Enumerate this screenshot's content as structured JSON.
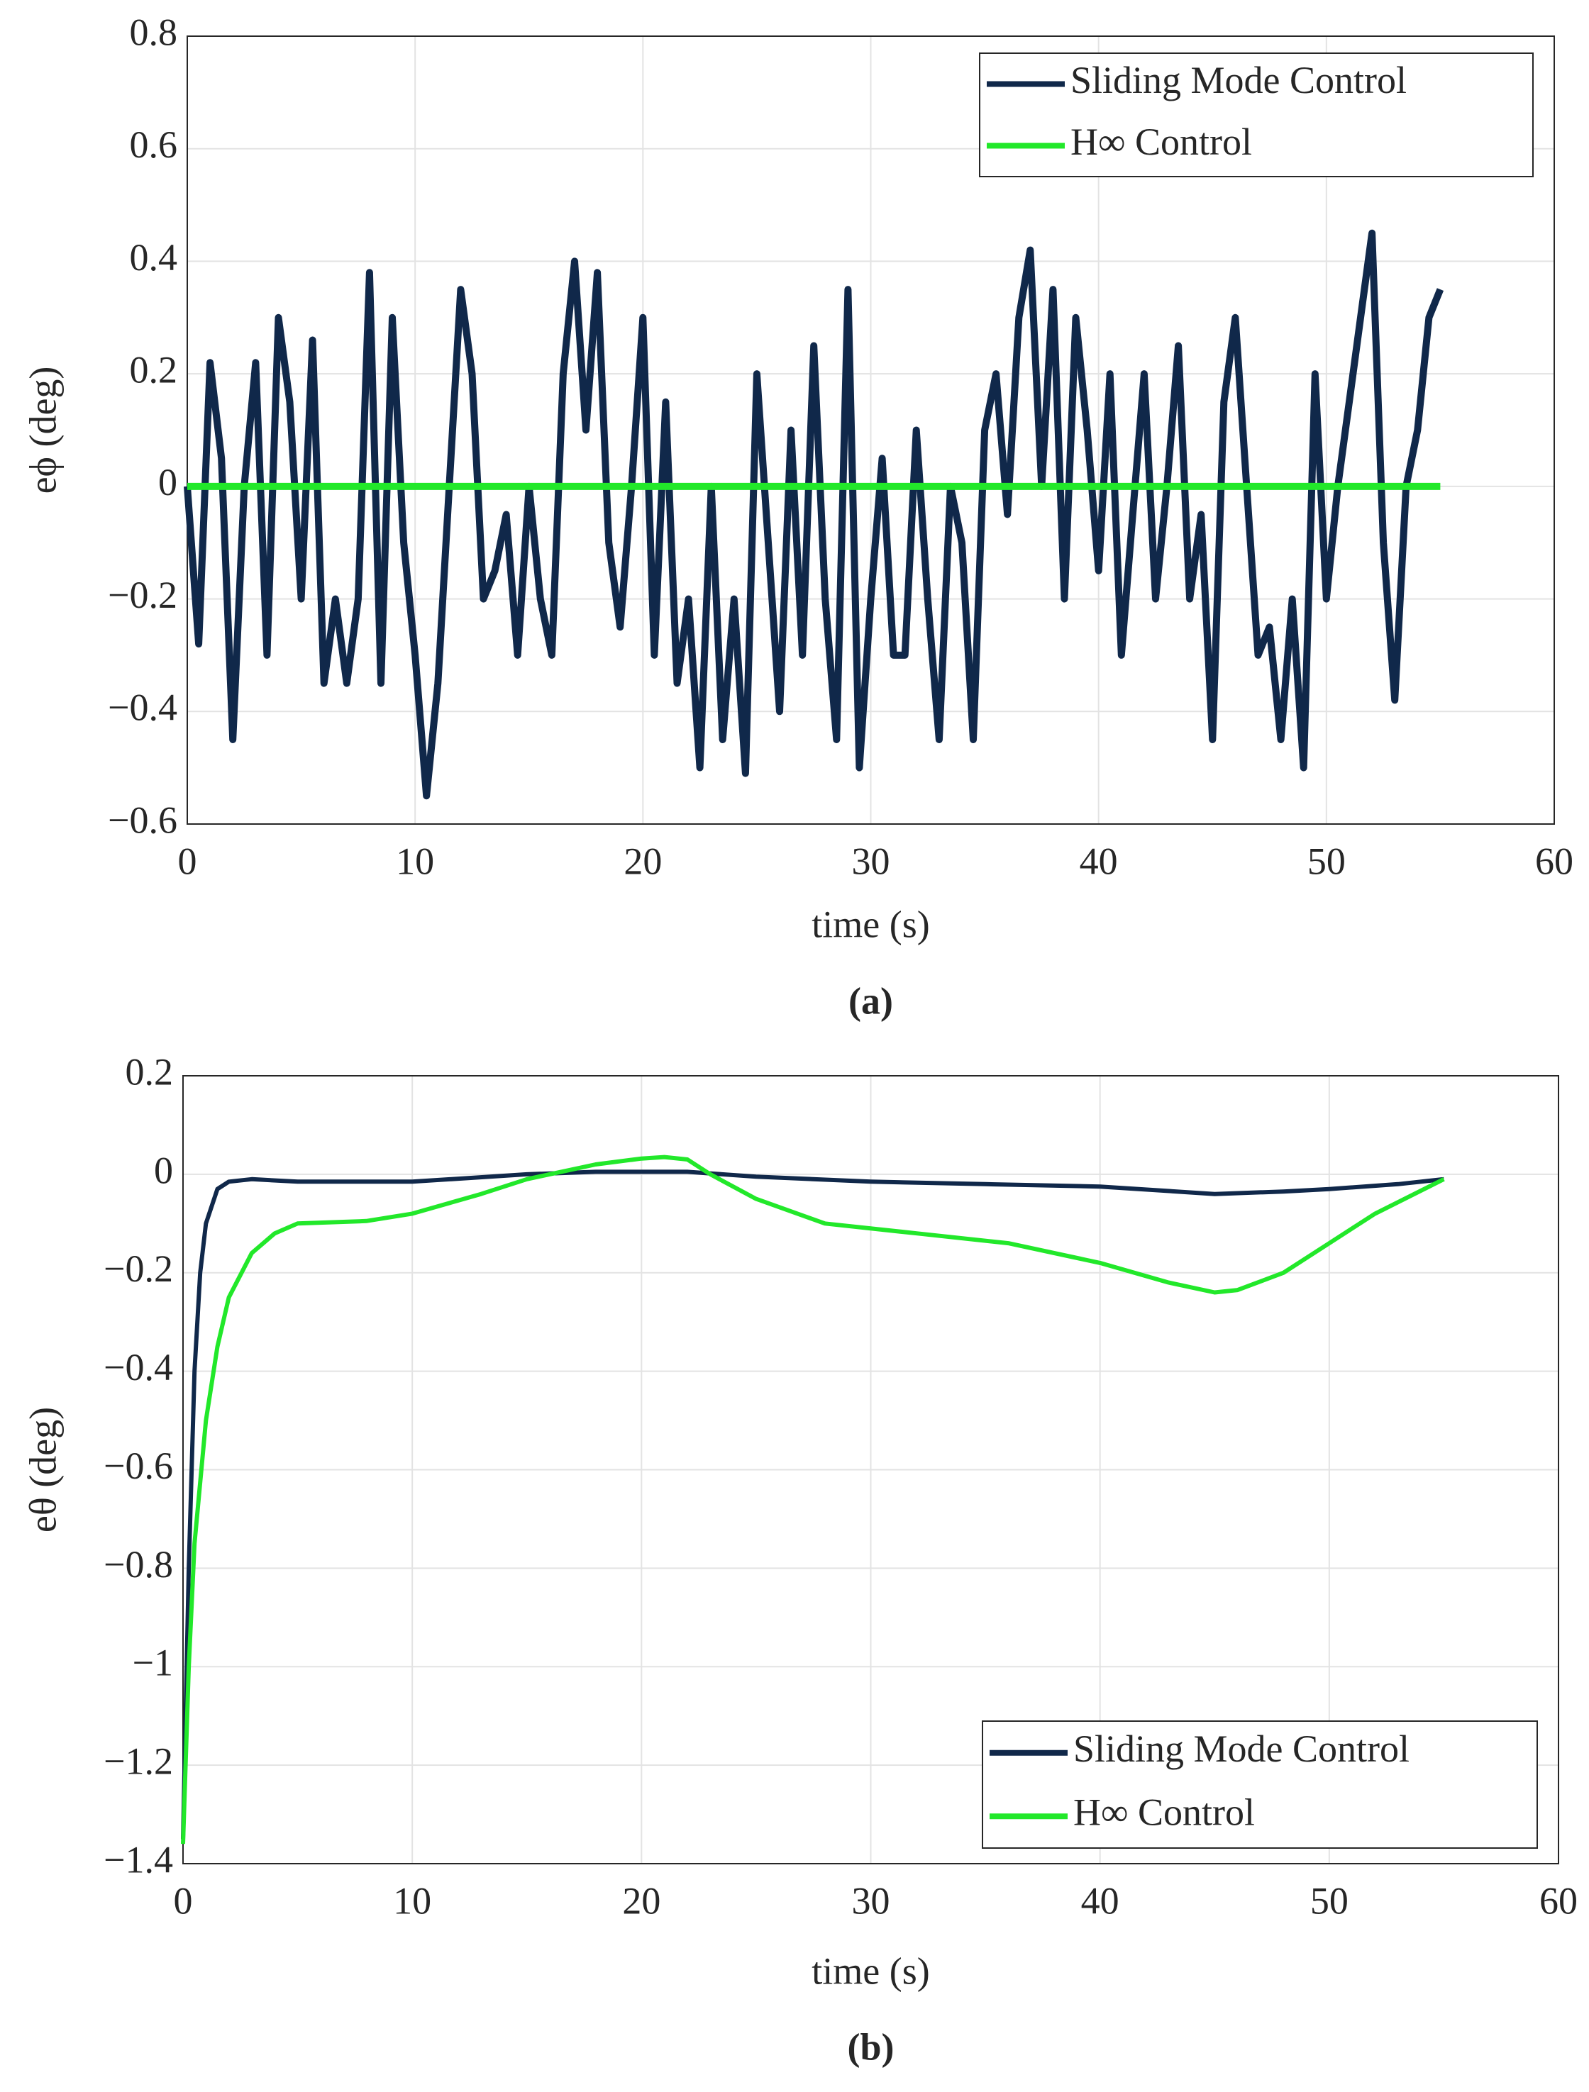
{
  "chart_data": [
    {
      "type": "line",
      "ylabel": "eϕ (deg)",
      "xlabel": "time (s)",
      "caption": "(a)",
      "xlim": [
        0,
        60
      ],
      "xticks": [
        0,
        10,
        20,
        30,
        40,
        50,
        60
      ],
      "ylim": [
        -0.6,
        0.8
      ],
      "yticks": [
        {
          "value": -0.6,
          "label": "−0.6"
        },
        {
          "value": -0.4,
          "label": "−0.4"
        },
        {
          "value": -0.2,
          "label": "−0.2"
        },
        0,
        0.2,
        0.4,
        0.6,
        0.8
      ],
      "grid": true,
      "legend": "upper right",
      "series": [
        {
          "name": "Sliding Mode Control",
          "color": "#10284a",
          "x": [
            0,
            0.5,
            1,
            1.5,
            2,
            2.5,
            3,
            3.5,
            4,
            4.5,
            5,
            5.5,
            6,
            6.5,
            7,
            7.5,
            8,
            8.5,
            9,
            9.5,
            10,
            10.5,
            11,
            11.5,
            12,
            12.5,
            13,
            13.5,
            14,
            14.5,
            15,
            15.5,
            16,
            16.5,
            17,
            17.5,
            18,
            18.5,
            19,
            19.5,
            20,
            20.5,
            21,
            21.5,
            22,
            22.5,
            23,
            23.5,
            24,
            24.5,
            25,
            25.5,
            26,
            26.5,
            27,
            27.5,
            28,
            28.5,
            29,
            29.5,
            30,
            30.5,
            31,
            31.5,
            32,
            32.5,
            33,
            33.5,
            34,
            34.5,
            35,
            35.5,
            36,
            36.5,
            37,
            37.5,
            38,
            38.5,
            39,
            39.5,
            40,
            40.5,
            41,
            41.5,
            42,
            42.5,
            43,
            43.5,
            44,
            44.5,
            45,
            45.5,
            46,
            46.5,
            47,
            47.5,
            48,
            48.5,
            49,
            49.5,
            50,
            50.5,
            51,
            51.5,
            52,
            52.5,
            53,
            53.5,
            54,
            54.5,
            55
          ],
          "values": [
            0,
            -0.28,
            0.22,
            0.05,
            -0.45,
            0.0,
            0.22,
            -0.3,
            0.3,
            0.15,
            -0.2,
            0.26,
            -0.35,
            -0.2,
            -0.35,
            -0.2,
            0.38,
            -0.35,
            0.3,
            -0.1,
            -0.3,
            -0.55,
            -0.35,
            0.0,
            0.35,
            0.2,
            -0.2,
            -0.15,
            -0.05,
            -0.3,
            0.0,
            -0.2,
            -0.3,
            0.2,
            0.4,
            0.1,
            0.38,
            -0.1,
            -0.25,
            0.0,
            0.3,
            -0.3,
            0.15,
            -0.35,
            -0.2,
            -0.5,
            0.0,
            -0.45,
            -0.2,
            -0.51,
            0.2,
            -0.1,
            -0.4,
            0.1,
            -0.3,
            0.25,
            -0.2,
            -0.45,
            0.35,
            -0.5,
            -0.2,
            0.05,
            -0.3,
            -0.3,
            0.1,
            -0.2,
            -0.45,
            0.0,
            -0.1,
            -0.45,
            0.1,
            0.2,
            -0.05,
            0.3,
            0.42,
            0.0,
            0.35,
            -0.2,
            0.3,
            0.1,
            -0.15,
            0.2,
            -0.3,
            -0.05,
            0.2,
            -0.2,
            0.0,
            0.25,
            -0.2,
            -0.05,
            -0.45,
            0.15,
            0.3,
            0.0,
            -0.3,
            -0.25,
            -0.45,
            -0.2,
            -0.5,
            0.2,
            -0.2,
            0.0,
            0.15,
            0.3,
            0.45,
            -0.1,
            -0.38,
            0.0,
            0.1,
            0.3,
            0.35
          ]
        },
        {
          "name": "H∞ Control",
          "color": "#22e82a",
          "x": [
            0,
            55
          ],
          "values": [
            0,
            0
          ]
        }
      ]
    },
    {
      "type": "line",
      "ylabel": "eθ (deg)",
      "xlabel": "time (s)",
      "caption": "(b)",
      "xlim": [
        0,
        60
      ],
      "xticks": [
        0,
        10,
        20,
        30,
        40,
        50,
        60
      ],
      "ylim": [
        -1.4,
        0.2
      ],
      "yticks": [
        {
          "value": -1.4,
          "label": "−1.4"
        },
        {
          "value": -1.2,
          "label": "−1.2"
        },
        {
          "value": -1,
          "label": "−1"
        },
        {
          "value": -0.8,
          "label": "−0.8"
        },
        {
          "value": -0.6,
          "label": "−0.6"
        },
        {
          "value": -0.4,
          "label": "−0.4"
        },
        {
          "value": -0.2,
          "label": "−0.2"
        },
        0,
        0.2
      ],
      "grid": true,
      "legend": "lower right",
      "series": [
        {
          "name": "Sliding Mode Control",
          "color": "#10284a",
          "x": [
            0,
            0.25,
            0.5,
            0.75,
            1,
            1.5,
            2,
            3,
            5,
            10,
            15,
            18,
            20,
            22,
            25,
            30,
            35,
            40,
            45,
            48,
            50,
            53,
            55
          ],
          "values": [
            -1.35,
            -0.8,
            -0.4,
            -0.2,
            -0.1,
            -0.03,
            -0.015,
            -0.01,
            -0.015,
            -0.015,
            0,
            0.005,
            0.005,
            0.005,
            -0.005,
            -0.015,
            -0.02,
            -0.025,
            -0.04,
            -0.035,
            -0.03,
            -0.02,
            -0.01
          ]
        },
        {
          "name": "H∞ Control",
          "color": "#22e82a",
          "x": [
            0,
            0.25,
            0.5,
            1,
            1.5,
            2,
            3,
            4,
            5,
            8,
            10,
            13,
            15,
            18,
            20,
            21,
            22,
            23,
            25,
            28,
            32,
            36,
            40,
            43,
            45,
            46,
            48,
            50,
            52,
            55
          ],
          "values": [
            -1.36,
            -1.0,
            -0.75,
            -0.5,
            -0.35,
            -0.25,
            -0.16,
            -0.12,
            -0.1,
            -0.095,
            -0.08,
            -0.04,
            -0.01,
            0.02,
            0.032,
            0.035,
            0.03,
            0.0,
            -0.05,
            -0.1,
            -0.12,
            -0.14,
            -0.18,
            -0.22,
            -0.24,
            -0.235,
            -0.2,
            -0.14,
            -0.08,
            -0.01
          ]
        }
      ]
    }
  ]
}
